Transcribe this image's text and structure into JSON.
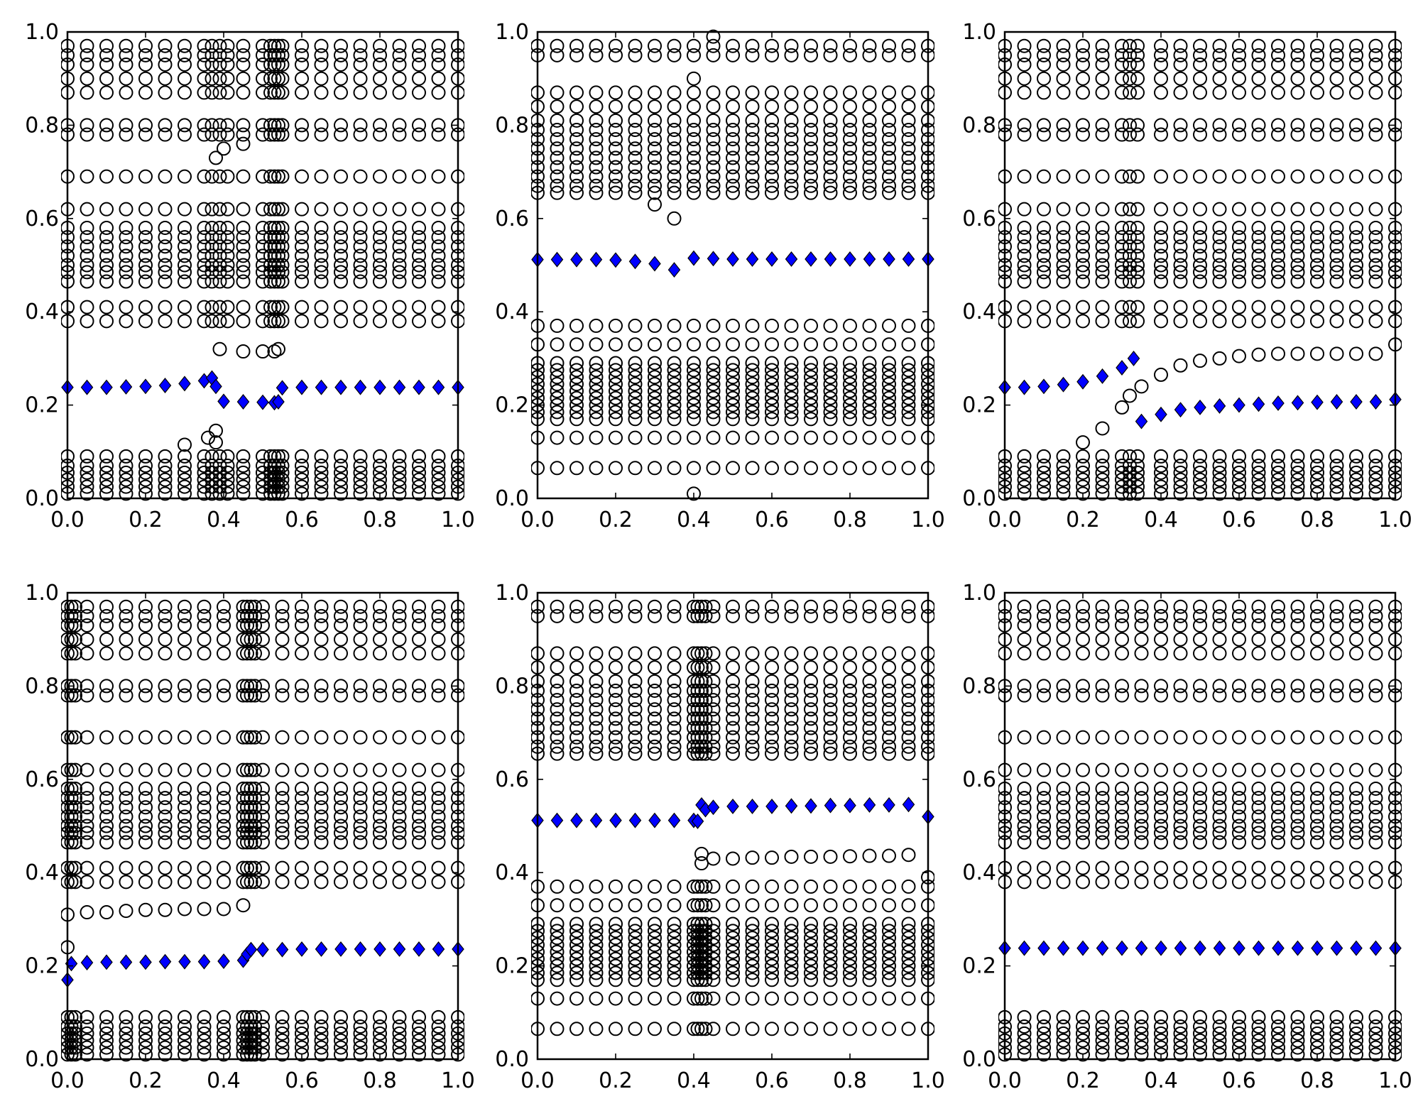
{
  "style": {
    "circle_color": "#000000",
    "diamond_color": "#0000ff",
    "background": "#ffffff"
  },
  "chart_data": [
    {
      "type": "scatter",
      "panel": "top-left",
      "xlim": [
        0.0,
        1.0
      ],
      "ylim": [
        0.0,
        1.0
      ],
      "xticks": [
        "0.0",
        "0.2",
        "0.4",
        "0.6",
        "0.8",
        "1.0"
      ],
      "yticks": [
        "0.0",
        "0.2",
        "0.4",
        "0.6",
        "0.8",
        "1.0"
      ],
      "grid": false,
      "circle_x": [
        0.0,
        0.05,
        0.1,
        0.15,
        0.2,
        0.25,
        0.3,
        0.35,
        0.37,
        0.39,
        0.41,
        0.45,
        0.5,
        0.52,
        0.53,
        0.54,
        0.55,
        0.6,
        0.65,
        0.7,
        0.75,
        0.8,
        0.85,
        0.9,
        0.95,
        1.0
      ],
      "circle_levels": [
        0.01,
        0.025,
        0.04,
        0.055,
        0.07,
        0.09,
        0.38,
        0.41,
        0.465,
        0.485,
        0.5,
        0.52,
        0.54,
        0.56,
        0.58,
        0.62,
        0.69,
        0.78,
        0.8,
        0.87,
        0.9,
        0.93,
        0.95,
        0.97
      ],
      "circle_extra": [
        [
          0.38,
          0.12
        ],
        [
          0.36,
          0.13
        ],
        [
          0.38,
          0.145
        ],
        [
          0.3,
          0.115
        ],
        [
          0.39,
          0.32
        ],
        [
          0.45,
          0.315
        ],
        [
          0.5,
          0.315
        ],
        [
          0.53,
          0.315
        ],
        [
          0.54,
          0.32
        ],
        [
          0.38,
          0.73
        ],
        [
          0.45,
          0.76
        ],
        [
          0.4,
          0.75
        ]
      ],
      "diamond_x": [
        0.0,
        0.05,
        0.1,
        0.15,
        0.2,
        0.25,
        0.3,
        0.35,
        0.37,
        0.38,
        0.4,
        0.45,
        0.5,
        0.53,
        0.54,
        0.55,
        0.6,
        0.65,
        0.7,
        0.75,
        0.8,
        0.85,
        0.9,
        0.95,
        1.0
      ],
      "diamond_y": [
        0.238,
        0.238,
        0.238,
        0.239,
        0.24,
        0.242,
        0.246,
        0.252,
        0.258,
        0.24,
        0.208,
        0.207,
        0.206,
        0.205,
        0.207,
        0.237,
        0.238,
        0.238,
        0.238,
        0.238,
        0.238,
        0.238,
        0.238,
        0.238,
        0.238
      ]
    },
    {
      "type": "scatter",
      "panel": "top-center",
      "xlim": [
        0.0,
        1.0
      ],
      "ylim": [
        0.0,
        1.0
      ],
      "xticks": [
        "0.0",
        "0.2",
        "0.4",
        "0.6",
        "0.8",
        "1.0"
      ],
      "yticks": [
        "0.0",
        "0.2",
        "0.4",
        "0.6",
        "0.8",
        "1.0"
      ],
      "grid": false,
      "circle_x": [
        0.0,
        0.05,
        0.1,
        0.15,
        0.2,
        0.25,
        0.3,
        0.35,
        0.4,
        0.45,
        0.5,
        0.55,
        0.6,
        0.65,
        0.7,
        0.75,
        0.8,
        0.85,
        0.9,
        0.95,
        1.0
      ],
      "circle_levels": [
        0.065,
        0.13,
        0.17,
        0.185,
        0.2,
        0.215,
        0.23,
        0.245,
        0.26,
        0.275,
        0.29,
        0.33,
        0.37,
        0.655,
        0.67,
        0.69,
        0.71,
        0.73,
        0.75,
        0.77,
        0.79,
        0.81,
        0.84,
        0.87,
        0.95,
        0.97
      ],
      "circle_extra": [
        [
          0.3,
          0.63
        ],
        [
          0.35,
          0.6
        ],
        [
          0.4,
          0.01
        ],
        [
          0.45,
          0.99
        ],
        [
          0.4,
          0.9
        ]
      ],
      "diamond_x": [
        0.0,
        0.05,
        0.1,
        0.15,
        0.2,
        0.25,
        0.3,
        0.35,
        0.4,
        0.45,
        0.5,
        0.55,
        0.6,
        0.65,
        0.7,
        0.75,
        0.8,
        0.85,
        0.9,
        0.95,
        1.0
      ],
      "diamond_y": [
        0.512,
        0.512,
        0.512,
        0.512,
        0.511,
        0.508,
        0.503,
        0.49,
        0.515,
        0.514,
        0.513,
        0.513,
        0.513,
        0.513,
        0.513,
        0.513,
        0.513,
        0.513,
        0.513,
        0.513,
        0.513
      ]
    },
    {
      "type": "scatter",
      "panel": "top-right",
      "xlim": [
        0.0,
        1.0
      ],
      "ylim": [
        0.0,
        1.0
      ],
      "xticks": [
        "0.0",
        "0.2",
        "0.4",
        "0.6",
        "0.8",
        "1.0"
      ],
      "yticks": [
        "0.0",
        "0.2",
        "0.4",
        "0.6",
        "0.8",
        "1.0"
      ],
      "grid": false,
      "circle_x": [
        0.0,
        0.05,
        0.1,
        0.15,
        0.2,
        0.25,
        0.3,
        0.32,
        0.34,
        0.4,
        0.45,
        0.5,
        0.55,
        0.6,
        0.65,
        0.7,
        0.75,
        0.8,
        0.85,
        0.9,
        0.95,
        1.0
      ],
      "circle_levels": [
        0.01,
        0.025,
        0.04,
        0.055,
        0.07,
        0.09,
        0.38,
        0.41,
        0.465,
        0.485,
        0.5,
        0.52,
        0.54,
        0.56,
        0.58,
        0.62,
        0.69,
        0.78,
        0.8,
        0.87,
        0.9,
        0.93,
        0.95,
        0.97
      ],
      "circle_extra": [
        [
          0.2,
          0.12
        ],
        [
          0.25,
          0.15
        ],
        [
          0.3,
          0.195
        ],
        [
          0.32,
          0.22
        ],
        [
          0.35,
          0.24
        ],
        [
          0.4,
          0.265
        ],
        [
          0.45,
          0.285
        ],
        [
          0.5,
          0.295
        ],
        [
          0.55,
          0.3
        ],
        [
          0.6,
          0.305
        ],
        [
          0.65,
          0.308
        ],
        [
          0.7,
          0.31
        ],
        [
          0.75,
          0.31
        ],
        [
          0.8,
          0.31
        ],
        [
          0.85,
          0.31
        ],
        [
          0.9,
          0.31
        ],
        [
          0.95,
          0.31
        ],
        [
          1.0,
          0.33
        ]
      ],
      "diamond_x": [
        0.0,
        0.05,
        0.1,
        0.15,
        0.2,
        0.25,
        0.3,
        0.33,
        0.35,
        0.4,
        0.45,
        0.5,
        0.55,
        0.6,
        0.65,
        0.7,
        0.75,
        0.8,
        0.85,
        0.9,
        0.95,
        1.0
      ],
      "diamond_y": [
        0.238,
        0.238,
        0.24,
        0.244,
        0.25,
        0.262,
        0.28,
        0.3,
        0.165,
        0.18,
        0.19,
        0.195,
        0.198,
        0.2,
        0.202,
        0.204,
        0.205,
        0.206,
        0.207,
        0.207,
        0.207,
        0.212
      ]
    },
    {
      "type": "scatter",
      "panel": "bottom-left",
      "xlim": [
        0.0,
        1.0
      ],
      "ylim": [
        0.0,
        1.0
      ],
      "xticks": [
        "0.0",
        "0.2",
        "0.4",
        "0.6",
        "0.8",
        "1.0"
      ],
      "yticks": [
        "0.0",
        "0.2",
        "0.4",
        "0.6",
        "0.8",
        "1.0"
      ],
      "grid": false,
      "circle_x": [
        0.0,
        0.01,
        0.02,
        0.05,
        0.1,
        0.15,
        0.2,
        0.25,
        0.3,
        0.35,
        0.4,
        0.45,
        0.46,
        0.47,
        0.48,
        0.5,
        0.55,
        0.6,
        0.65,
        0.7,
        0.75,
        0.8,
        0.85,
        0.9,
        0.95,
        1.0
      ],
      "circle_levels": [
        0.01,
        0.025,
        0.04,
        0.055,
        0.07,
        0.09,
        0.38,
        0.41,
        0.465,
        0.485,
        0.5,
        0.52,
        0.54,
        0.56,
        0.58,
        0.62,
        0.69,
        0.78,
        0.8,
        0.87,
        0.9,
        0.93,
        0.95,
        0.97
      ],
      "circle_extra": [
        [
          0.0,
          0.31
        ],
        [
          0.05,
          0.315
        ],
        [
          0.1,
          0.315
        ],
        [
          0.15,
          0.318
        ],
        [
          0.2,
          0.32
        ],
        [
          0.25,
          0.32
        ],
        [
          0.3,
          0.322
        ],
        [
          0.35,
          0.322
        ],
        [
          0.4,
          0.322
        ],
        [
          0.45,
          0.33
        ],
        [
          0.0,
          0.24
        ]
      ],
      "diamond_x": [
        0.0,
        0.01,
        0.05,
        0.1,
        0.15,
        0.2,
        0.25,
        0.3,
        0.35,
        0.4,
        0.45,
        0.46,
        0.47,
        0.5,
        0.55,
        0.6,
        0.65,
        0.7,
        0.75,
        0.8,
        0.85,
        0.9,
        0.95,
        1.0
      ],
      "diamond_y": [
        0.17,
        0.205,
        0.207,
        0.208,
        0.208,
        0.208,
        0.209,
        0.209,
        0.209,
        0.21,
        0.212,
        0.225,
        0.235,
        0.235,
        0.235,
        0.236,
        0.236,
        0.236,
        0.236,
        0.236,
        0.236,
        0.236,
        0.236,
        0.236
      ]
    },
    {
      "type": "scatter",
      "panel": "bottom-center",
      "xlim": [
        0.0,
        1.0
      ],
      "ylim": [
        0.0,
        1.0
      ],
      "xticks": [
        "0.0",
        "0.2",
        "0.4",
        "0.6",
        "0.8",
        "1.0"
      ],
      "yticks": [
        "0.0",
        "0.2",
        "0.4",
        "0.6",
        "0.8",
        "1.0"
      ],
      "grid": false,
      "circle_x": [
        0.0,
        0.05,
        0.1,
        0.15,
        0.2,
        0.25,
        0.3,
        0.35,
        0.4,
        0.41,
        0.42,
        0.43,
        0.45,
        0.5,
        0.55,
        0.6,
        0.65,
        0.7,
        0.75,
        0.8,
        0.85,
        0.9,
        0.95,
        1.0
      ],
      "circle_levels": [
        0.065,
        0.13,
        0.17,
        0.185,
        0.2,
        0.215,
        0.23,
        0.245,
        0.26,
        0.275,
        0.29,
        0.33,
        0.37,
        0.655,
        0.67,
        0.69,
        0.71,
        0.73,
        0.75,
        0.77,
        0.79,
        0.81,
        0.84,
        0.87,
        0.95,
        0.97
      ],
      "circle_extra": [
        [
          0.42,
          0.44
        ],
        [
          0.42,
          0.42
        ],
        [
          0.45,
          0.43
        ],
        [
          0.5,
          0.43
        ],
        [
          0.55,
          0.432
        ],
        [
          0.6,
          0.432
        ],
        [
          0.65,
          0.434
        ],
        [
          0.7,
          0.434
        ],
        [
          0.75,
          0.434
        ],
        [
          0.8,
          0.435
        ],
        [
          0.85,
          0.436
        ],
        [
          0.9,
          0.436
        ],
        [
          0.95,
          0.438
        ],
        [
          1.0,
          0.39
        ]
      ],
      "diamond_x": [
        0.0,
        0.05,
        0.1,
        0.15,
        0.2,
        0.25,
        0.3,
        0.35,
        0.4,
        0.41,
        0.42,
        0.43,
        0.45,
        0.5,
        0.55,
        0.6,
        0.65,
        0.7,
        0.75,
        0.8,
        0.85,
        0.9,
        0.95,
        1.0
      ],
      "diamond_y": [
        0.512,
        0.512,
        0.512,
        0.512,
        0.512,
        0.512,
        0.512,
        0.512,
        0.512,
        0.51,
        0.545,
        0.535,
        0.54,
        0.542,
        0.542,
        0.542,
        0.543,
        0.543,
        0.544,
        0.544,
        0.545,
        0.545,
        0.546,
        0.52
      ]
    },
    {
      "type": "scatter",
      "panel": "bottom-right",
      "xlim": [
        0.0,
        1.0
      ],
      "ylim": [
        0.0,
        1.0
      ],
      "xticks": [
        "0.0",
        "0.2",
        "0.4",
        "0.6",
        "0.8",
        "1.0"
      ],
      "yticks": [
        "0.0",
        "0.2",
        "0.4",
        "0.6",
        "0.8",
        "1.0"
      ],
      "grid": false,
      "circle_x": [
        0.0,
        0.05,
        0.1,
        0.15,
        0.2,
        0.25,
        0.3,
        0.35,
        0.4,
        0.45,
        0.5,
        0.55,
        0.6,
        0.65,
        0.7,
        0.75,
        0.8,
        0.85,
        0.9,
        0.95,
        1.0
      ],
      "circle_levels": [
        0.01,
        0.025,
        0.04,
        0.055,
        0.07,
        0.09,
        0.38,
        0.41,
        0.465,
        0.485,
        0.5,
        0.52,
        0.54,
        0.56,
        0.58,
        0.62,
        0.69,
        0.78,
        0.8,
        0.87,
        0.9,
        0.93,
        0.95,
        0.97
      ],
      "circle_extra": [],
      "diamond_x": [
        0.0,
        0.05,
        0.1,
        0.15,
        0.2,
        0.25,
        0.3,
        0.35,
        0.4,
        0.45,
        0.5,
        0.55,
        0.6,
        0.65,
        0.7,
        0.75,
        0.8,
        0.85,
        0.9,
        0.95,
        1.0
      ],
      "diamond_y": [
        0.238,
        0.238,
        0.238,
        0.238,
        0.238,
        0.238,
        0.238,
        0.238,
        0.238,
        0.238,
        0.238,
        0.238,
        0.238,
        0.238,
        0.238,
        0.238,
        0.238,
        0.238,
        0.238,
        0.238,
        0.238
      ]
    }
  ]
}
